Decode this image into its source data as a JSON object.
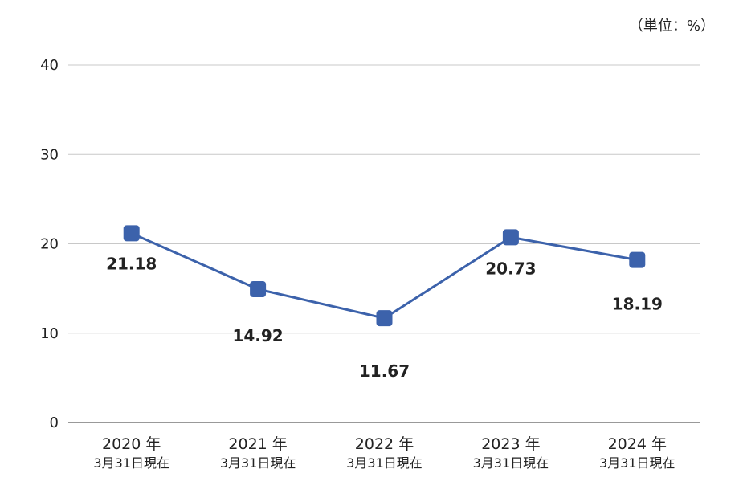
{
  "chart_data": {
    "type": "line",
    "unit_label": "（単位：%）",
    "categories": [
      {
        "year": "2020 年",
        "sub": "3月31日現在"
      },
      {
        "year": "2021 年",
        "sub": "3月31日現在"
      },
      {
        "year": "2022 年",
        "sub": "3月31日現在"
      },
      {
        "year": "2023 年",
        "sub": "3月31日現在"
      },
      {
        "year": "2024 年",
        "sub": "3月31日現在"
      }
    ],
    "values": [
      21.18,
      14.92,
      11.67,
      20.73,
      18.19
    ],
    "value_labels": [
      "21.18",
      "14.92",
      "11.67",
      "20.73",
      "18.19"
    ],
    "yticks": [
      "0",
      "10",
      "20",
      "30",
      "40"
    ],
    "ylim": [
      0,
      40
    ],
    "grid": true,
    "line_color": "#3c62ab",
    "marker_color": "#3c62ab",
    "grid_color": "#c8c8c8",
    "axis_color": "#999999"
  }
}
